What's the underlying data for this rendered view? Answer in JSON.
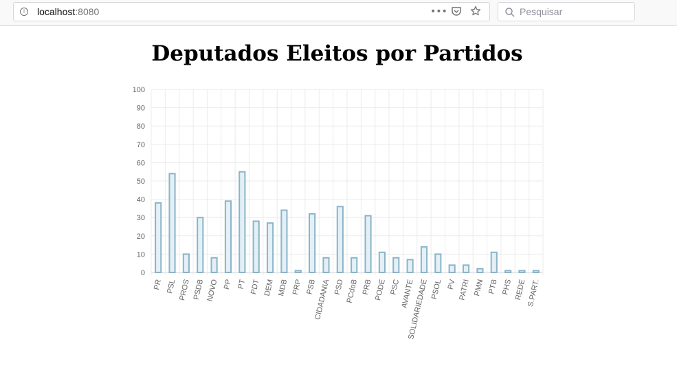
{
  "browser": {
    "url_host": "localhost",
    "url_port": ":8080",
    "search_placeholder": "Pesquisar"
  },
  "page": {
    "title": "Deputados Eleitos por Partidos"
  },
  "colors": {
    "bar_fill": "#e4f0f6",
    "bar_stroke": "#8ab4c9",
    "grid": "#ebebeb",
    "tick_text": "#666666"
  },
  "chart_data": {
    "type": "bar",
    "title": "Deputados Eleitos por Partidos",
    "categories": [
      "PR",
      "PSL",
      "PROS",
      "PSDB",
      "NOVO",
      "PP",
      "PT",
      "PDT",
      "DEM",
      "MDB",
      "PRP",
      "PSB",
      "CIDADANIA",
      "PSD",
      "PCdoB",
      "PRB",
      "PODE",
      "PSC",
      "AVANTE",
      "SOLIDARIEDADE",
      "PSOL",
      "PV",
      "PATRI",
      "PMN",
      "PTB",
      "PHS",
      "REDE",
      "S.PART."
    ],
    "values": [
      38,
      54,
      10,
      30,
      8,
      39,
      55,
      28,
      27,
      34,
      1,
      32,
      8,
      36,
      8,
      31,
      11,
      8,
      7,
      14,
      10,
      4,
      4,
      2,
      11,
      1,
      1,
      1
    ],
    "ylim": [
      0,
      100
    ],
    "yticks": [
      0,
      10,
      20,
      30,
      40,
      50,
      60,
      70,
      80,
      90,
      100
    ],
    "grid": true,
    "legend": "none"
  }
}
